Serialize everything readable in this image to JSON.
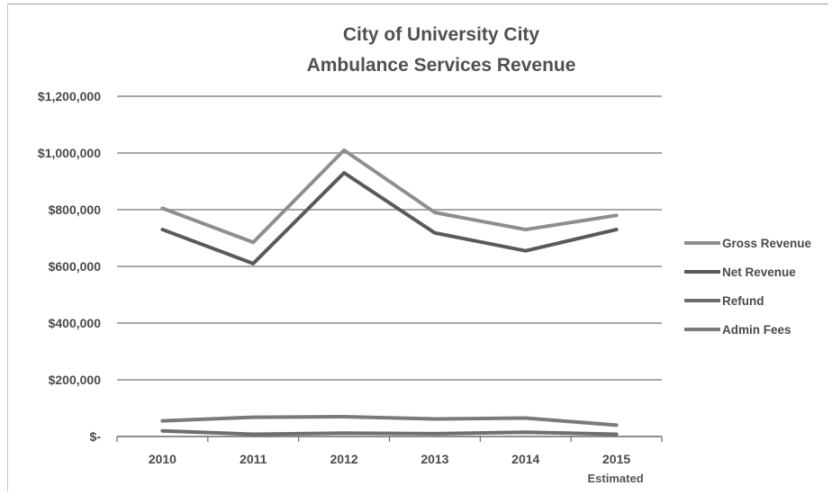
{
  "chart_data": {
    "type": "line",
    "title": "City of University City",
    "subtitle": "Ambulance Services Revenue",
    "categories": [
      "2010",
      "2011",
      "2012",
      "2013",
      "2014",
      "2015"
    ],
    "category_sublabels": [
      "",
      "",
      "",
      "",
      "",
      "Estimated"
    ],
    "y_ticks": [
      "$-",
      "$200,000",
      "$400,000",
      "$600,000",
      "$800,000",
      "$1,000,000",
      "$1,200,000"
    ],
    "ylim": [
      0,
      1200000
    ],
    "grid": true,
    "legend_position": "right",
    "series": [
      {
        "name": "Gross Revenue",
        "color": "#8e8e8e",
        "values": [
          805000,
          685000,
          1010000,
          790000,
          730000,
          780000
        ]
      },
      {
        "name": "Net Revenue",
        "color": "#5a5a5a",
        "values": [
          730000,
          610000,
          930000,
          718000,
          655000,
          730000
        ]
      },
      {
        "name": "Refund",
        "color": "#6e6e6e",
        "values": [
          20000,
          8000,
          12000,
          10000,
          15000,
          8000
        ]
      },
      {
        "name": "Admin Fees",
        "color": "#7a7a7a",
        "values": [
          55000,
          68000,
          70000,
          62000,
          65000,
          40000
        ]
      }
    ]
  }
}
